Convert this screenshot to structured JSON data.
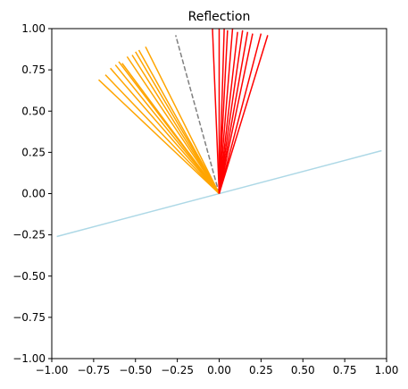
{
  "chart_data": {
    "type": "line",
    "title": "Reflection",
    "xlabel": "",
    "ylabel": "",
    "xlim": [
      -1.0,
      1.0
    ],
    "ylim": [
      -1.0,
      1.0
    ],
    "grid": false,
    "x_ticks": [
      -1.0,
      -0.75,
      -0.5,
      -0.25,
      0.0,
      0.25,
      0.5,
      0.75,
      1.0
    ],
    "y_ticks": [
      -1.0,
      -0.75,
      -0.5,
      -0.25,
      0.0,
      0.25,
      0.5,
      0.75,
      1.0
    ],
    "x_tick_labels": [
      "−1.00",
      "−0.75",
      "−0.50",
      "−0.25",
      "0.00",
      "0.25",
      "0.50",
      "0.75",
      "1.00"
    ],
    "y_tick_labels": [
      "−1.00",
      "−0.75",
      "−0.50",
      "−0.25",
      "0.00",
      "0.25",
      "0.50",
      "0.75",
      "1.00"
    ],
    "series": [
      {
        "color": "#add8e6",
        "style": "solid",
        "segments": [
          [
            [
              -0.97,
              -0.26
            ],
            [
              0.97,
              0.26
            ]
          ]
        ]
      },
      {
        "color": "#808080",
        "style": "dashed",
        "segments": [
          [
            [
              0.0,
              0.0
            ],
            [
              -0.26,
              0.96
            ]
          ]
        ]
      },
      {
        "color": "#ffa500",
        "style": "solid",
        "segments": [
          [
            [
              0.0,
              0.0
            ],
            [
              -0.72,
              0.69
            ]
          ],
          [
            [
              0.0,
              0.0
            ],
            [
              -0.68,
              0.72
            ]
          ],
          [
            [
              0.0,
              0.0
            ],
            [
              -0.65,
              0.76
            ]
          ],
          [
            [
              0.0,
              0.0
            ],
            [
              -0.62,
              0.78
            ]
          ],
          [
            [
              0.0,
              0.0
            ],
            [
              -0.6,
              0.8
            ]
          ],
          [
            [
              0.0,
              0.0
            ],
            [
              -0.58,
              0.79
            ]
          ],
          [
            [
              0.0,
              0.0
            ],
            [
              -0.55,
              0.83
            ]
          ],
          [
            [
              0.0,
              0.0
            ],
            [
              -0.52,
              0.84
            ]
          ],
          [
            [
              0.0,
              0.0
            ],
            [
              -0.5,
              0.86
            ]
          ],
          [
            [
              0.0,
              0.0
            ],
            [
              -0.48,
              0.87
            ]
          ],
          [
            [
              0.0,
              0.0
            ],
            [
              -0.44,
              0.89
            ]
          ]
        ]
      },
      {
        "color": "#ff0000",
        "style": "solid",
        "segments": [
          [
            [
              0.0,
              0.0
            ],
            [
              -0.04,
              1.0
            ]
          ],
          [
            [
              0.0,
              0.0
            ],
            [
              0.0,
              1.0
            ]
          ],
          [
            [
              0.0,
              0.0
            ],
            [
              0.03,
              1.0
            ]
          ],
          [
            [
              0.0,
              0.0
            ],
            [
              0.05,
              0.99
            ]
          ],
          [
            [
              0.0,
              0.0
            ],
            [
              0.08,
              1.0
            ]
          ],
          [
            [
              0.0,
              0.0
            ],
            [
              0.11,
              0.98
            ]
          ],
          [
            [
              0.0,
              0.0
            ],
            [
              0.14,
              0.99
            ]
          ],
          [
            [
              0.0,
              0.0
            ],
            [
              0.17,
              0.98
            ]
          ],
          [
            [
              0.0,
              0.0
            ],
            [
              0.2,
              0.97
            ]
          ],
          [
            [
              0.0,
              0.0
            ],
            [
              0.25,
              0.97
            ]
          ],
          [
            [
              0.0,
              0.0
            ],
            [
              0.29,
              0.96
            ]
          ]
        ]
      }
    ]
  }
}
